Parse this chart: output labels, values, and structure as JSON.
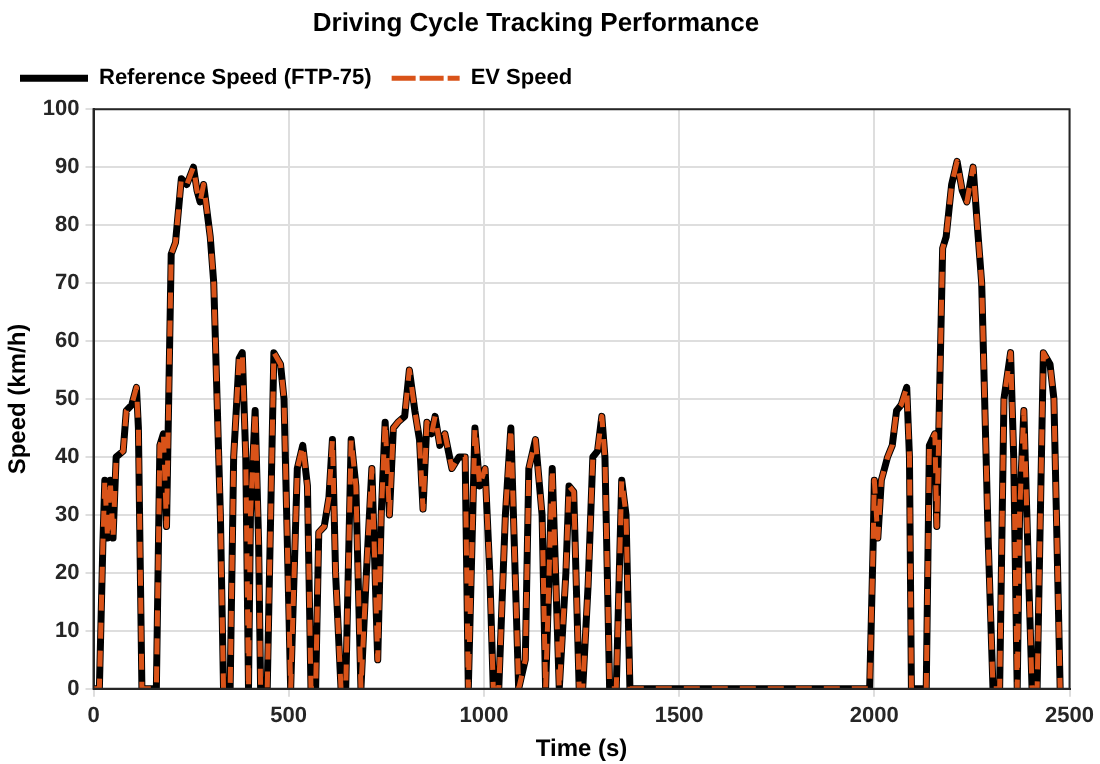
{
  "chart_data": {
    "type": "line",
    "title": "Driving Cycle Tracking Performance",
    "xlabel": "Time (s)",
    "ylabel": "Speed (km/h)",
    "x": [
      0,
      15,
      24,
      29,
      36,
      43,
      50,
      58,
      76,
      84,
      98,
      110,
      115,
      124,
      161,
      170,
      179,
      187,
      199,
      210,
      225,
      239,
      256,
      265,
      273,
      282,
      299,
      308,
      325,
      333,
      350,
      359,
      373,
      381,
      390,
      397,
      402,
      414,
      423,
      428,
      445,
      462,
      479,
      488,
      505,
      522,
      536,
      548,
      557,
      569,
      577,
      591,
      603,
      612,
      620,
      634,
      646,
      660,
      672,
      685,
      699,
      713,
      728,
      737,
      747,
      758,
      768,
      780,
      797,
      809,
      823,
      835,
      844,
      854,
      866,
      875,
      887,
      900,
      918,
      936,
      952,
      960,
      977,
      989,
      1003,
      1015,
      1024,
      1038,
      1055,
      1069,
      1080,
      1089,
      1106,
      1115,
      1132,
      1149,
      1158,
      1175,
      1193,
      1210,
      1218,
      1230,
      1244,
      1253,
      1267,
      1279,
      1291,
      1302,
      1310,
      1322,
      1339,
      1353,
      1364,
      1374,
      1988,
      1997,
      2000,
      2009,
      2018,
      2026,
      2034,
      2046,
      2057,
      2069,
      2083,
      2090,
      2095,
      2133,
      2141,
      2155,
      2160,
      2175,
      2184,
      2198,
      2212,
      2225,
      2237,
      2253,
      2266,
      2275,
      2292,
      2304,
      2321,
      2332,
      2349,
      2357,
      2366,
      2372,
      2383,
      2395,
      2404,
      2417,
      2433,
      2450,
      2460,
      2476,
      2480
    ],
    "series": [
      {
        "name": "Reference Speed (FTP-75)",
        "color": "#000000",
        "line_style": "solid",
        "values": [
          0,
          0,
          25,
          36,
          26,
          36,
          26,
          40,
          41,
          48,
          49,
          52,
          45,
          0,
          0,
          42,
          44,
          28,
          75,
          77,
          88,
          87,
          90,
          86,
          84,
          87,
          78,
          70,
          30,
          0,
          0,
          40,
          57,
          58,
          40,
          0,
          30,
          48,
          25,
          0,
          0,
          58,
          56,
          50,
          0,
          38,
          42,
          35,
          0,
          0,
          27,
          28,
          33,
          43,
          20,
          0,
          0,
          43,
          35,
          0,
          20,
          38,
          5,
          30,
          46,
          30,
          45,
          46,
          47,
          55,
          48,
          43,
          31,
          46,
          44,
          47,
          42,
          44,
          38,
          40,
          40,
          0,
          45,
          35,
          38,
          20,
          0,
          0,
          30,
          45,
          20,
          0,
          5,
          38,
          43,
          30,
          0,
          38,
          0,
          20,
          35,
          34,
          0,
          0,
          18,
          40,
          41,
          47,
          40,
          0,
          0,
          36,
          30,
          0,
          0,
          25,
          36,
          26,
          36,
          38,
          40,
          42,
          48,
          49,
          52,
          40,
          0,
          0,
          42,
          44,
          28,
          76,
          78,
          87,
          91,
          86,
          84,
          90,
          78,
          70,
          25,
          0,
          0,
          50,
          58,
          40,
          0,
          30,
          48,
          20,
          0,
          0,
          58,
          56,
          50,
          0,
          0
        ]
      },
      {
        "name": "EV Speed",
        "color": "#d95319",
        "line_style": "dashed",
        "values": [
          0,
          0,
          25,
          36,
          26,
          36,
          26,
          40,
          41,
          48,
          49,
          52,
          45,
          0,
          0,
          42,
          44,
          28,
          75,
          77,
          88,
          87,
          90,
          86,
          84,
          87,
          78,
          70,
          30,
          0,
          0,
          40,
          57,
          58,
          40,
          0,
          30,
          48,
          25,
          0,
          0,
          58,
          56,
          50,
          0,
          38,
          42,
          35,
          0,
          0,
          27,
          28,
          33,
          43,
          20,
          0,
          0,
          43,
          35,
          0,
          20,
          38,
          5,
          30,
          46,
          30,
          45,
          46,
          47,
          55,
          48,
          43,
          31,
          46,
          44,
          47,
          42,
          44,
          38,
          40,
          40,
          0,
          45,
          35,
          38,
          20,
          0,
          0,
          30,
          45,
          20,
          0,
          5,
          38,
          43,
          30,
          0,
          38,
          0,
          20,
          35,
          34,
          0,
          0,
          18,
          40,
          41,
          47,
          40,
          0,
          0,
          36,
          30,
          0,
          0,
          25,
          36,
          26,
          36,
          38,
          40,
          42,
          48,
          49,
          52,
          40,
          0,
          0,
          42,
          44,
          28,
          76,
          78,
          87,
          91,
          86,
          84,
          90,
          78,
          70,
          25,
          0,
          0,
          50,
          58,
          40,
          0,
          30,
          48,
          20,
          0,
          0,
          58,
          56,
          50,
          0,
          0
        ]
      }
    ],
    "xlim": [
      0,
      2500
    ],
    "xticks": [
      0,
      500,
      1000,
      1500,
      2000,
      2500
    ],
    "ylim": [
      0,
      100
    ],
    "yticks": [
      0,
      10,
      20,
      30,
      40,
      50,
      60,
      70,
      80,
      90,
      100
    ],
    "grid": true,
    "legend": "top left",
    "marker": "none"
  }
}
